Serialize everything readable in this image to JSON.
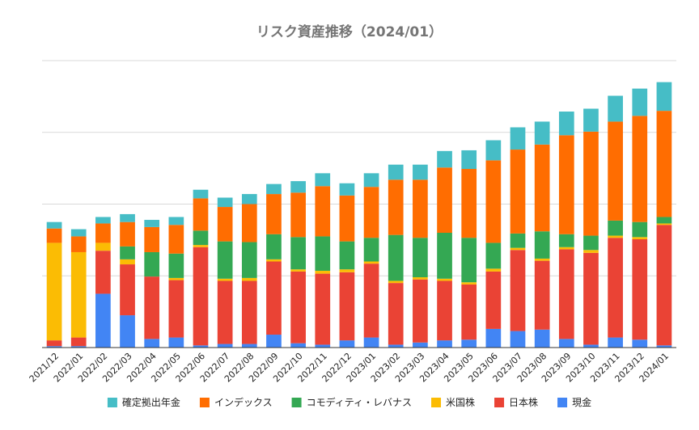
{
  "chart_data": {
    "type": "bar",
    "stacked": true,
    "title": "リスク資産推移（2024/01）",
    "xlabel": "",
    "ylabel": "",
    "ylim": [
      0,
      400
    ],
    "grid": true,
    "y_tick_labels_visible": false,
    "legend_position": "bottom",
    "categories": [
      "2021/12",
      "2022/01",
      "2022/02",
      "2022/03",
      "2022/04",
      "2022/05",
      "2022/06",
      "2022/07",
      "2022/08",
      "2022/09",
      "2022/10",
      "2022/11",
      "2022/12",
      "2023/01",
      "2023/02",
      "2023/03",
      "2023/04",
      "2023/05",
      "2023/06",
      "2023/07",
      "2023/08",
      "2023/09",
      "2023/10",
      "2023/11",
      "2023/12",
      "2024/01"
    ],
    "series": [
      {
        "name": "現金",
        "color": "#4285f4",
        "values": [
          2,
          2,
          75,
          45,
          12,
          14,
          3,
          5,
          5,
          18,
          6,
          4,
          10,
          14,
          4,
          7,
          10,
          11,
          26,
          23,
          25,
          12,
          4,
          14,
          11,
          3
        ]
      },
      {
        "name": "日本株",
        "color": "#ea4335",
        "values": [
          8,
          12,
          60,
          71,
          87,
          80,
          137,
          88,
          88,
          102,
          100,
          99,
          95,
          103,
          86,
          88,
          83,
          77,
          80,
          113,
          96,
          125,
          128,
          139,
          140,
          168
        ]
      },
      {
        "name": "米国株",
        "color": "#fbbc04",
        "values": [
          136,
          119,
          11,
          7,
          0,
          3,
          3,
          3,
          4,
          3,
          3,
          4,
          4,
          3,
          3,
          3,
          3,
          3,
          4,
          3,
          3,
          3,
          4,
          3,
          3,
          2
        ]
      },
      {
        "name": "コモディティ・レバナス",
        "color": "#34a853",
        "values": [
          0,
          0,
          0,
          18,
          34,
          34,
          20,
          52,
          50,
          35,
          45,
          48,
          39,
          33,
          64,
          55,
          64,
          62,
          36,
          20,
          38,
          18,
          20,
          21,
          21,
          9
        ]
      },
      {
        "name": "インデックス",
        "color": "#ff6d01",
        "values": [
          20,
          22,
          27,
          34,
          35,
          40,
          45,
          48,
          53,
          56,
          62,
          70,
          64,
          71,
          77,
          81,
          91,
          96,
          115,
          117,
          121,
          138,
          145,
          138,
          148,
          148
        ]
      },
      {
        "name": "確定拠出年金",
        "color": "#46bdc6",
        "values": [
          9,
          10,
          9,
          11,
          10,
          11,
          12,
          13,
          14,
          14,
          16,
          18,
          17,
          19,
          21,
          21,
          23,
          26,
          28,
          31,
          32,
          33,
          32,
          36,
          38,
          40
        ]
      }
    ],
    "legend_order": [
      "確定拠出年金",
      "インデックス",
      "コモディティ・レバナス",
      "米国株",
      "日本株",
      "現金"
    ]
  }
}
